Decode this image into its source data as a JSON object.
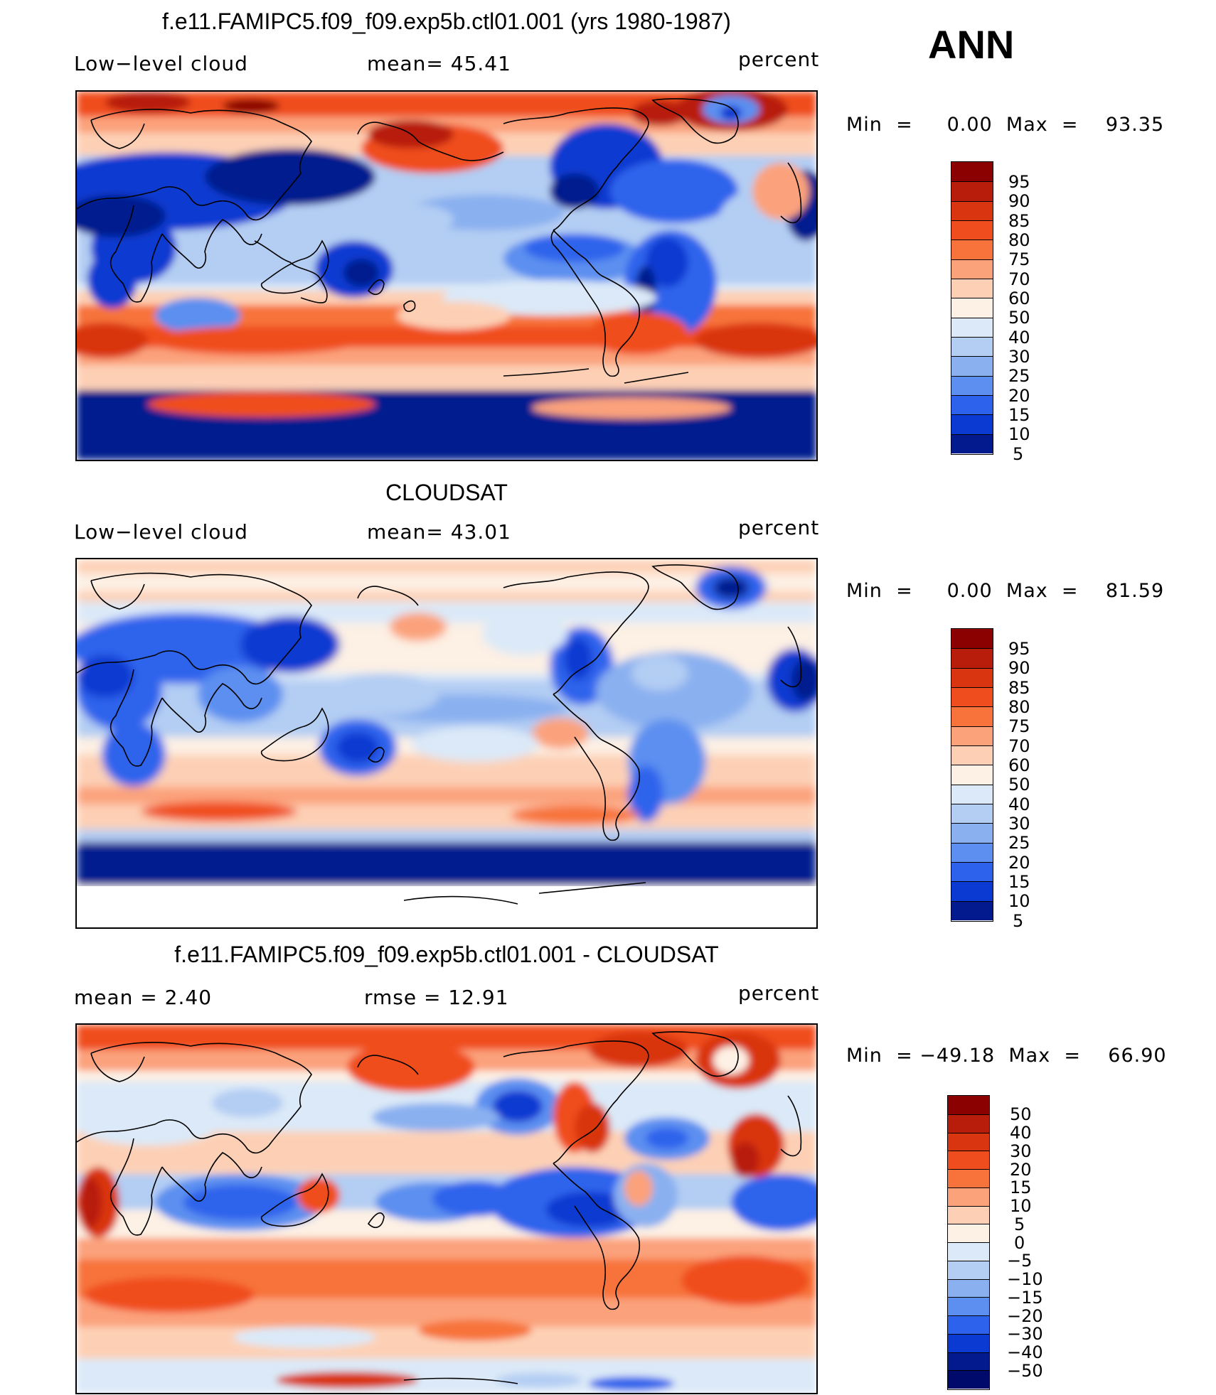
{
  "header": {
    "season": "ANN"
  },
  "panels": [
    {
      "title": "f.e11.FAMIPC5.f09_f09.exp5b.ctl01.001 (yrs 1980-1987)",
      "left": "Low−level cloud",
      "mid": "mean=   45.41",
      "right": "percent",
      "minmax": "Min  =     0.00  Max  =    93.35",
      "levels": [
        "95",
        "90",
        "85",
        "80",
        "75",
        "70",
        "60",
        "50",
        "40",
        "30",
        "25",
        "20",
        "15",
        "10",
        "5"
      ],
      "colors": [
        "#8b0000",
        "#b81c0a",
        "#d93510",
        "#f04d1e",
        "#f7733b",
        "#fba27b",
        "#fdd0b5",
        "#fdf0e4",
        "#dbe9f8",
        "#b3cdf3",
        "#8ab0f0",
        "#5c8ff0",
        "#2d63ec",
        "#0a3ad1",
        "#021a8e"
      ]
    },
    {
      "title": "CLOUDSAT",
      "left": "Low−level cloud",
      "mid": "mean=   43.01",
      "right": "percent",
      "minmax": "Min  =     0.00  Max  =    81.59",
      "levels": [
        "95",
        "90",
        "85",
        "80",
        "75",
        "70",
        "60",
        "50",
        "40",
        "30",
        "25",
        "20",
        "15",
        "10",
        "5"
      ],
      "colors": [
        "#8b0000",
        "#b81c0a",
        "#d93510",
        "#f04d1e",
        "#f7733b",
        "#fba27b",
        "#fdd0b5",
        "#fdf0e4",
        "#dbe9f8",
        "#b3cdf3",
        "#8ab0f0",
        "#5c8ff0",
        "#2d63ec",
        "#0a3ad1",
        "#021a8e"
      ]
    },
    {
      "title": "f.e11.FAMIPC5.f09_f09.exp5b.ctl01.001 - CLOUDSAT",
      "left": "mean =     2.40",
      "mid": "rmse  =    12.91",
      "right": "percent",
      "minmax": "Min  = −49.18  Max  =    66.90",
      "levels": [
        "50",
        "40",
        "30",
        "20",
        "15",
        "10",
        "5",
        "0",
        "−5",
        "−10",
        "−15",
        "−20",
        "−30",
        "−40",
        "−50"
      ],
      "colors": [
        "#8b0000",
        "#b81c0a",
        "#d93510",
        "#f04d1e",
        "#f7733b",
        "#fba27b",
        "#fdd0b5",
        "#fdf0e4",
        "#dbe9f8",
        "#b3cdf3",
        "#8ab0f0",
        "#5c8ff0",
        "#2d63ec",
        "#0a3ad1",
        "#021a8e",
        "#000a6a"
      ]
    }
  ]
}
